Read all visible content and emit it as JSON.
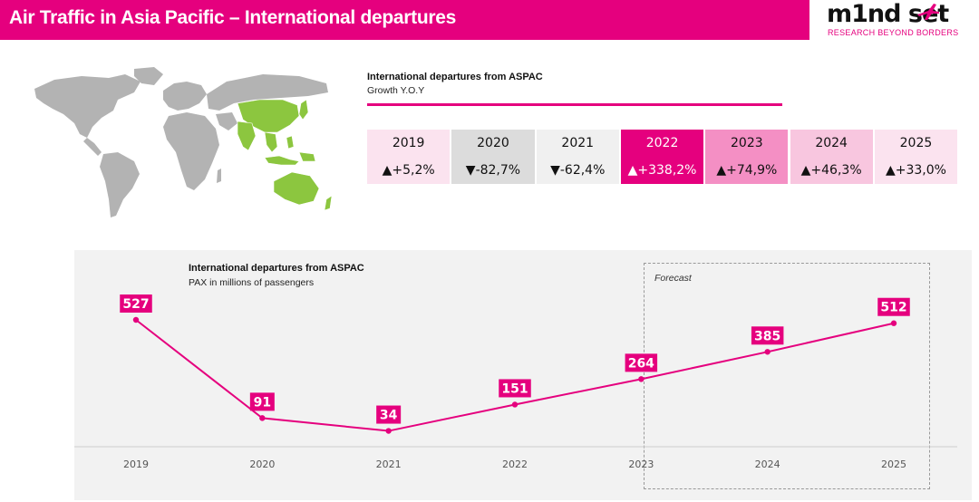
{
  "header": {
    "title": "Air Traffic in Asia Pacific – International departures",
    "logo_word": "m1nd set",
    "logo_tagline": "RESEARCH BEYOND BORDERS"
  },
  "map": {
    "icon": "world-map-asia-pacific-highlighted",
    "base_color": "#b3b3b3",
    "highlight_color": "#8cc63f"
  },
  "yoy_table": {
    "title": "International departures from ASPAC",
    "subtitle": "Growth Y.O.Y",
    "columns": [
      {
        "year": "2019",
        "value": "▲+5,2%",
        "bg": "#fbe3ef"
      },
      {
        "year": "2020",
        "value": "▼-82,7%",
        "bg": "#dcdcdc"
      },
      {
        "year": "2021",
        "value": "▼-62,4%",
        "bg": "#f0f0f0"
      },
      {
        "year": "2022",
        "value": "▲+338,2%",
        "bg": "#e5007e",
        "text_color": "#ffffff"
      },
      {
        "year": "2023",
        "value": "▲+74,9%",
        "bg": "#f48fc4"
      },
      {
        "year": "2024",
        "value": "▲+46,3%",
        "bg": "#f8c6df"
      },
      {
        "year": "2025",
        "value": "▲+33,0%",
        "bg": "#fbe3ef"
      }
    ]
  },
  "chart_data": {
    "type": "line",
    "title": "International departures from ASPAC",
    "subtitle": "PAX in millions of passengers",
    "x": [
      "2019",
      "2020",
      "2021",
      "2022",
      "2023",
      "2024",
      "2025"
    ],
    "series": [
      {
        "values": [
          527,
          91,
          34,
          151,
          264,
          385,
          512
        ],
        "color": "#e5007e"
      }
    ],
    "ylim": [
      0,
      527
    ],
    "annotation": "Forecast",
    "forecast_from": "2023",
    "grid": false
  }
}
